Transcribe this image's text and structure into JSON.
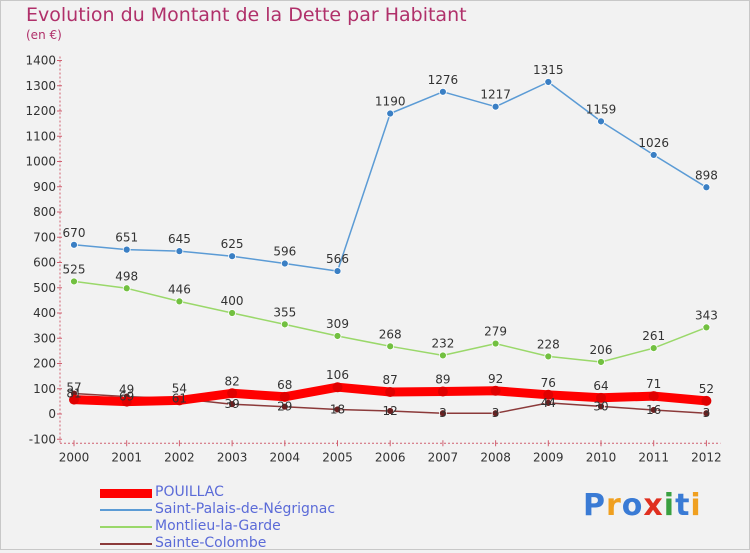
{
  "title": "Evolution du Montant de la Dette par Habitant",
  "unit": "(en €)",
  "logo": {
    "text": "Proxiti",
    "letters": [
      {
        "ch": "P",
        "color": "#3a7bd5"
      },
      {
        "ch": "r",
        "color": "#f0a020"
      },
      {
        "ch": "o",
        "color": "#3a7bd5"
      },
      {
        "ch": "x",
        "color": "#e03020"
      },
      {
        "ch": "i",
        "color": "#3aa040"
      },
      {
        "ch": "t",
        "color": "#3a7bd5"
      },
      {
        "ch": "i",
        "color": "#f0a020"
      }
    ]
  },
  "chart_data": {
    "type": "line",
    "title": "Evolution du Montant de la Dette par Habitant",
    "ylabel": "(en €)",
    "xlabel": "",
    "x": [
      "2000",
      "2001",
      "2002",
      "2003",
      "2004",
      "2005",
      "2006",
      "2007",
      "2008",
      "2009",
      "2010",
      "2011",
      "2012"
    ],
    "ylim": [
      -100,
      1400
    ],
    "yticks": [
      -100,
      0,
      100,
      200,
      300,
      400,
      500,
      600,
      700,
      800,
      900,
      1000,
      1100,
      1200,
      1300,
      1400
    ],
    "grid": false,
    "legend": "bottom-left",
    "series": [
      {
        "name": "Saint-Palais-de-Négrignac",
        "color": "#5b9bd5",
        "marker": "#3a7fc4",
        "values": [
          670,
          651,
          645,
          625,
          596,
          566,
          1190,
          1276,
          1217,
          1315,
          1159,
          1026,
          898
        ],
        "labels": [
          "670",
          "651",
          "645",
          "625",
          "596",
          "566",
          "1190",
          "1276",
          "1217",
          "1315",
          "1159",
          "1026",
          "898"
        ]
      },
      {
        "name": "Montlieu-la-Garde",
        "color": "#9ad86a",
        "marker": "#72c040",
        "values": [
          525,
          498,
          446,
          400,
          355,
          309,
          268,
          232,
          279,
          228,
          206,
          261,
          343
        ],
        "labels": [
          "525",
          "498",
          "446",
          "400",
          "355",
          "309",
          "268",
          "232",
          "279",
          "228",
          "206",
          "261",
          "343"
        ]
      },
      {
        "name": "Sainte-Colombe",
        "color": "#8b3a3a",
        "marker": "#6a2020",
        "values": [
          81,
          69,
          61,
          39,
          29,
          18,
          12,
          3,
          3,
          44,
          30,
          16,
          3
        ],
        "labels": [
          "81",
          "69",
          "61",
          "39",
          "29",
          "18",
          "12",
          "3",
          "3",
          "44",
          "30",
          "16",
          "3"
        ]
      },
      {
        "name": "POUILLAC",
        "color": "#ff0000",
        "marker": "#e00000",
        "values": [
          57,
          49,
          54,
          82,
          68,
          106,
          87,
          89,
          92,
          76,
          64,
          71,
          52
        ],
        "labels": [
          "57",
          "49",
          "54",
          "82",
          "68",
          "106",
          "87",
          "89",
          "92",
          "76",
          "64",
          "71",
          "52"
        ]
      }
    ]
  },
  "legend": {
    "items": [
      {
        "name": "POUILLAC",
        "color": "#ff0000",
        "thickness": 9
      },
      {
        "name": "Saint-Palais-de-Négrignac",
        "color": "#5b9bd5",
        "thickness": 2
      },
      {
        "name": "Montlieu-la-Garde",
        "color": "#9ad86a",
        "thickness": 2
      },
      {
        "name": "Sainte-Colombe",
        "color": "#8b3a3a",
        "thickness": 2
      }
    ]
  }
}
